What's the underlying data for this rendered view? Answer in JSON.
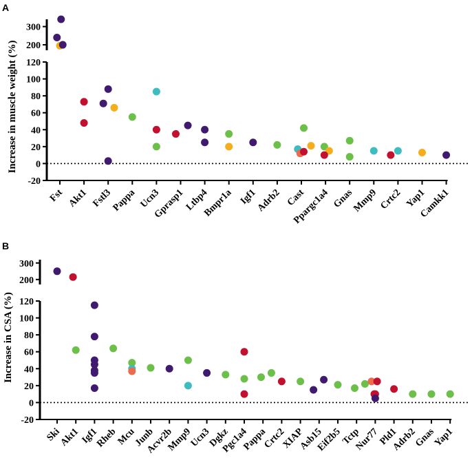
{
  "figure": {
    "colors": {
      "purple": "#3f1a6e",
      "red": "#c2102e",
      "orange": "#f6ad1d",
      "green": "#6cc04a",
      "teal": "#3fbcc0",
      "salmon": "#ee6a4c"
    }
  },
  "chart_data": [
    {
      "type": "scatter",
      "panel_label": "A",
      "ylabel": "Increase in muscle weight (%)",
      "y_ticks_lower": [
        "-20",
        "0",
        "20",
        "40",
        "60",
        "80",
        "100",
        "120"
      ],
      "y_ticks_upper": [
        "200",
        "300"
      ],
      "ylim_lower": [
        -20,
        120
      ],
      "ylim_upper": [
        170,
        340
      ],
      "zero_line": "dotted",
      "categories": [
        "Fst",
        "Akt1",
        "Fstl3",
        "Pappa",
        "Ucn3",
        "Gprasp1",
        "Ltbp4",
        "Bmpr1a",
        "Igf1",
        "Adrb2",
        "Cast",
        "Ppargc1a4",
        "Gnas",
        "Mmp9",
        "Crtc2",
        "Yap1",
        "Camkk1"
      ],
      "points": [
        {
          "cat": 0,
          "dx": -0.12,
          "y": 240,
          "color": "purple"
        },
        {
          "cat": 0,
          "dx": 0.05,
          "y": 340,
          "color": "purple"
        },
        {
          "cat": 0,
          "dx": 0.0,
          "y": 195,
          "color": "orange"
        },
        {
          "cat": 0,
          "dx": 0.12,
          "y": 200,
          "color": "purple"
        },
        {
          "cat": 1,
          "dx": 0,
          "y": 73,
          "color": "red"
        },
        {
          "cat": 1,
          "dx": 0,
          "y": 48,
          "color": "red"
        },
        {
          "cat": 2,
          "dx": -0.2,
          "y": 71,
          "color": "purple"
        },
        {
          "cat": 2,
          "dx": 0.0,
          "y": 88,
          "color": "purple"
        },
        {
          "cat": 2,
          "dx": 0.25,
          "y": 66,
          "color": "orange"
        },
        {
          "cat": 2,
          "dx": 0.0,
          "y": 3,
          "color": "purple"
        },
        {
          "cat": 3,
          "dx": 0,
          "y": 55,
          "color": "green"
        },
        {
          "cat": 4,
          "dx": 0,
          "y": 85,
          "color": "teal"
        },
        {
          "cat": 4,
          "dx": 0,
          "y": 40,
          "color": "red"
        },
        {
          "cat": 4,
          "dx": 0,
          "y": 20,
          "color": "green"
        },
        {
          "cat": 5,
          "dx": -0.2,
          "y": 35,
          "color": "red"
        },
        {
          "cat": 5,
          "dx": 0.3,
          "y": 45,
          "color": "purple"
        },
        {
          "cat": 6,
          "dx": 0,
          "y": 40,
          "color": "purple"
        },
        {
          "cat": 6,
          "dx": 0,
          "y": 25,
          "color": "purple"
        },
        {
          "cat": 7,
          "dx": 0,
          "y": 35,
          "color": "green"
        },
        {
          "cat": 7,
          "dx": 0,
          "y": 20,
          "color": "orange"
        },
        {
          "cat": 8,
          "dx": 0,
          "y": 25,
          "color": "purple"
        },
        {
          "cat": 9,
          "dx": 0,
          "y": 22,
          "color": "green"
        },
        {
          "cat": 10,
          "dx": -0.15,
          "y": 17,
          "color": "teal"
        },
        {
          "cat": 10,
          "dx": -0.05,
          "y": 12,
          "color": "salmon"
        },
        {
          "cat": 10,
          "dx": 0.1,
          "y": 42,
          "color": "green"
        },
        {
          "cat": 10,
          "dx": 0.1,
          "y": 14,
          "color": "red"
        },
        {
          "cat": 10,
          "dx": 0.4,
          "y": 21,
          "color": "orange"
        },
        {
          "cat": 11,
          "dx": -0.05,
          "y": 20,
          "color": "green"
        },
        {
          "cat": 11,
          "dx": 0.15,
          "y": 15,
          "color": "orange"
        },
        {
          "cat": 11,
          "dx": -0.05,
          "y": 10,
          "color": "red"
        },
        {
          "cat": 12,
          "dx": 0,
          "y": 27,
          "color": "green"
        },
        {
          "cat": 12,
          "dx": 0,
          "y": 8,
          "color": "green"
        },
        {
          "cat": 13,
          "dx": 0,
          "y": 15,
          "color": "teal"
        },
        {
          "cat": 14,
          "dx": -0.3,
          "y": 10,
          "color": "red"
        },
        {
          "cat": 14,
          "dx": 0.0,
          "y": 15,
          "color": "teal"
        },
        {
          "cat": 15,
          "dx": 0,
          "y": 13,
          "color": "orange"
        },
        {
          "cat": 16,
          "dx": 0,
          "y": 10,
          "color": "purple"
        }
      ]
    },
    {
      "type": "scatter",
      "panel_label": "B",
      "ylabel": "Increase in CSA (%)",
      "y_ticks_lower": [
        "-20",
        "0",
        "20",
        "40",
        "60",
        "80",
        "100",
        "120"
      ],
      "y_ticks_upper": [
        "200",
        "300"
      ],
      "ylim_lower": [
        -20,
        120
      ],
      "ylim_upper": [
        170,
        320
      ],
      "zero_line": "dotted",
      "categories": [
        "Ski",
        "Akt1",
        "Igf1",
        "Rheb",
        "Mcu",
        "Junb",
        "Acvr2b",
        "Mmp9",
        "Ucn3",
        "Dgkz",
        "Pgc1a4",
        "Pappa",
        "Crtc2",
        "XIAP",
        "Asb15",
        "Eif2b5",
        "Tctp",
        "Nur77",
        "Pld1",
        "Adrb2",
        "Gnas",
        "Yap1"
      ],
      "points": [
        {
          "cat": 0,
          "dx": 0,
          "y": 250,
          "color": "purple"
        },
        {
          "cat": 1,
          "dx": -0.15,
          "y": 215,
          "color": "red"
        },
        {
          "cat": 1,
          "dx": 0,
          "y": 62,
          "color": "green"
        },
        {
          "cat": 2,
          "dx": 0,
          "y": 115,
          "color": "purple"
        },
        {
          "cat": 2,
          "dx": 0,
          "y": 78,
          "color": "purple"
        },
        {
          "cat": 2,
          "dx": 0,
          "y": 50,
          "color": "purple"
        },
        {
          "cat": 2,
          "dx": 0,
          "y": 45,
          "color": "purple"
        },
        {
          "cat": 2,
          "dx": 0,
          "y": 38,
          "color": "purple"
        },
        {
          "cat": 2,
          "dx": 0,
          "y": 35,
          "color": "purple"
        },
        {
          "cat": 2,
          "dx": 0,
          "y": 17,
          "color": "purple"
        },
        {
          "cat": 3,
          "dx": 0,
          "y": 64,
          "color": "green"
        },
        {
          "cat": 4,
          "dx": 0,
          "y": 47,
          "color": "green"
        },
        {
          "cat": 4,
          "dx": 0,
          "y": 40,
          "color": "teal"
        },
        {
          "cat": 4,
          "dx": 0,
          "y": 37,
          "color": "salmon"
        },
        {
          "cat": 5,
          "dx": 0,
          "y": 41,
          "color": "green"
        },
        {
          "cat": 6,
          "dx": 0,
          "y": 40,
          "color": "purple"
        },
        {
          "cat": 7,
          "dx": 0,
          "y": 50,
          "color": "green"
        },
        {
          "cat": 7,
          "dx": 0,
          "y": 20,
          "color": "teal"
        },
        {
          "cat": 8,
          "dx": 0,
          "y": 35,
          "color": "purple"
        },
        {
          "cat": 9,
          "dx": 0,
          "y": 33,
          "color": "green"
        },
        {
          "cat": 10,
          "dx": 0,
          "y": 60,
          "color": "red"
        },
        {
          "cat": 10,
          "dx": 0,
          "y": 28,
          "color": "green"
        },
        {
          "cat": 10,
          "dx": 0,
          "y": 10,
          "color": "red"
        },
        {
          "cat": 11,
          "dx": -0.1,
          "y": 30,
          "color": "green"
        },
        {
          "cat": 11,
          "dx": 0.45,
          "y": 35,
          "color": "green"
        },
        {
          "cat": 12,
          "dx": 0,
          "y": 25,
          "color": "red"
        },
        {
          "cat": 13,
          "dx": 0,
          "y": 25,
          "color": "green"
        },
        {
          "cat": 14,
          "dx": -0.3,
          "y": 15,
          "color": "purple"
        },
        {
          "cat": 14,
          "dx": 0.25,
          "y": 27,
          "color": "purple"
        },
        {
          "cat": 15,
          "dx": 0,
          "y": 21,
          "color": "green"
        },
        {
          "cat": 16,
          "dx": -0.1,
          "y": 17,
          "color": "green"
        },
        {
          "cat": 16,
          "dx": 0.45,
          "y": 22,
          "color": "green"
        },
        {
          "cat": 17,
          "dx": -0.2,
          "y": 25,
          "color": "salmon"
        },
        {
          "cat": 17,
          "dx": 0.1,
          "y": 25,
          "color": "red"
        },
        {
          "cat": 17,
          "dx": -0.05,
          "y": 10,
          "color": "red"
        },
        {
          "cat": 17,
          "dx": 0.0,
          "y": 10,
          "color": "red"
        },
        {
          "cat": 17,
          "dx": 0.0,
          "y": 5,
          "color": "purple"
        },
        {
          "cat": 18,
          "dx": 0,
          "y": 16,
          "color": "red"
        },
        {
          "cat": 19,
          "dx": 0,
          "y": 10,
          "color": "green"
        },
        {
          "cat": 20,
          "dx": 0,
          "y": 10,
          "color": "green"
        },
        {
          "cat": 21,
          "dx": 0,
          "y": 10,
          "color": "green"
        }
      ]
    }
  ]
}
